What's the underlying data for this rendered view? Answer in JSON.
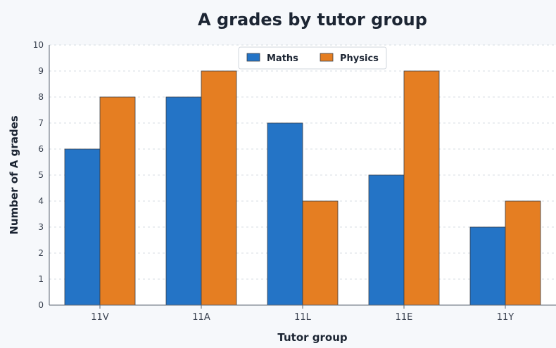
{
  "chart_data": {
    "type": "bar",
    "title": "A grades by tutor group",
    "xlabel": "Tutor group",
    "ylabel": "Number of A grades",
    "categories": [
      "11V",
      "11A",
      "11L",
      "11E",
      "11Y"
    ],
    "series": [
      {
        "name": "Maths",
        "values": [
          6,
          8,
          7,
          5,
          3
        ],
        "color": "#2474c6"
      },
      {
        "name": "Physics",
        "values": [
          8,
          9,
          4,
          9,
          4
        ],
        "color": "#e57e22"
      }
    ],
    "ylim": [
      0,
      10
    ],
    "yticks": [
      "0",
      "1",
      "2",
      "3",
      "4",
      "5",
      "6",
      "7",
      "8",
      "9",
      "10"
    ],
    "grid": true,
    "legend_position": "top-center"
  }
}
